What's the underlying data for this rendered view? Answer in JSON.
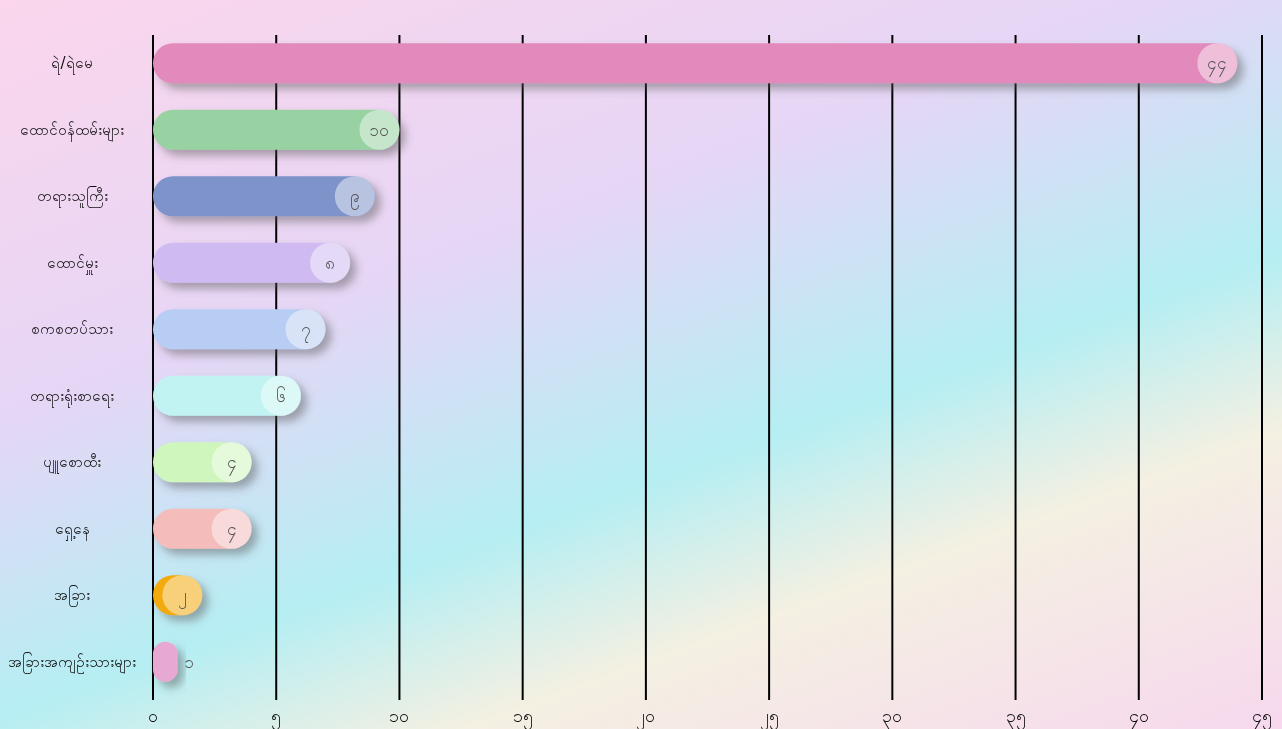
{
  "chart_data": {
    "type": "bar",
    "orientation": "horizontal",
    "categories": [
      "ရဲ/ရဲမေ",
      "ထောင်ဝန်ထမ်းများ",
      "တရားသူကြီး",
      "ထောင်မှူး",
      "စကစတပ်သား",
      "တရားရုံးစာရေး",
      "ပျူစောထီး",
      "ရှေ့နေ",
      "အခြား",
      "အခြားအကျဉ်းသားများ"
    ],
    "values": [
      44,
      10,
      9,
      8,
      7,
      6,
      4,
      4,
      2,
      1
    ],
    "value_labels": [
      "၄၄",
      "၁၀",
      "၉",
      "၈",
      "၇",
      "၆",
      "၄",
      "၄",
      "၂",
      "၁"
    ],
    "colors": [
      "#e28abc",
      "#98d2a2",
      "#7f93cb",
      "#cfbbf2",
      "#b8cdf3",
      "#c0f3f1",
      "#cff6bd",
      "#f5bcbc",
      "#f2aa08",
      "#e7a9d3"
    ],
    "xlim": [
      0,
      45
    ],
    "xticks": [
      {
        "value": 0,
        "label": "၀"
      },
      {
        "value": 5,
        "label": "၅"
      },
      {
        "value": 10,
        "label": "၁၀"
      },
      {
        "value": 15,
        "label": "၁၅"
      },
      {
        "value": 20,
        "label": "၂၀"
      },
      {
        "value": 25,
        "label": "၂၅"
      },
      {
        "value": 30,
        "label": "၃၀"
      },
      {
        "value": 35,
        "label": "၃၅"
      },
      {
        "value": 40,
        "label": "၄၀"
      },
      {
        "value": 45,
        "label": "၄၅"
      }
    ],
    "grid": "x"
  }
}
